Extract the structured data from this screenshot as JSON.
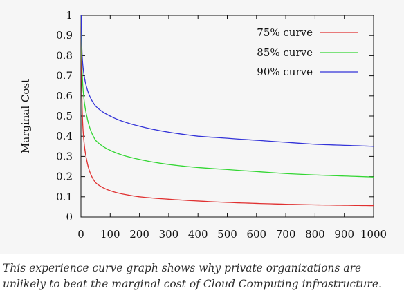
{
  "chart_data": {
    "type": "line",
    "xlabel": "",
    "ylabel": "Marginal Cost",
    "xlim": [
      0,
      1000
    ],
    "ylim": [
      0,
      1
    ],
    "xticks": [
      "0",
      "100",
      "200",
      "300",
      "400",
      "500",
      "600",
      "700",
      "800",
      "900",
      "1000"
    ],
    "yticks": [
      "0",
      "0.1",
      "0.2",
      "0.3",
      "0.4",
      "0.5",
      "0.6",
      "0.7",
      "0.8",
      "0.9",
      "1"
    ],
    "grid": false,
    "legend_position": "top-right",
    "series": [
      {
        "name": "75% curve",
        "color": "#e03030",
        "x": [
          1,
          2,
          5,
          10,
          20,
          50,
          100,
          200,
          300,
          400,
          500,
          600,
          700,
          800,
          900,
          1000
        ],
        "y": [
          1.0,
          0.75,
          0.5,
          0.38,
          0.28,
          0.17,
          0.13,
          0.1,
          0.088,
          0.079,
          0.072,
          0.067,
          0.063,
          0.06,
          0.058,
          0.056
        ]
      },
      {
        "name": "85% curve",
        "color": "#33d633",
        "x": [
          1,
          2,
          5,
          10,
          20,
          50,
          100,
          200,
          300,
          400,
          500,
          600,
          700,
          800,
          900,
          1000
        ],
        "y": [
          1.0,
          0.85,
          0.69,
          0.59,
          0.5,
          0.38,
          0.33,
          0.285,
          0.26,
          0.245,
          0.235,
          0.225,
          0.215,
          0.208,
          0.203,
          0.198
        ]
      },
      {
        "name": "90% curve",
        "color": "#3232d8",
        "x": [
          1,
          2,
          5,
          10,
          20,
          50,
          100,
          200,
          300,
          400,
          500,
          600,
          700,
          800,
          900,
          1000
        ],
        "y": [
          1.0,
          0.9,
          0.78,
          0.71,
          0.64,
          0.55,
          0.5,
          0.45,
          0.42,
          0.4,
          0.39,
          0.38,
          0.37,
          0.36,
          0.355,
          0.35
        ]
      }
    ]
  },
  "caption": "This experience curve graph shows why private organizations are unlikely to beat the marginal cost of Cloud Computing infrastructure."
}
